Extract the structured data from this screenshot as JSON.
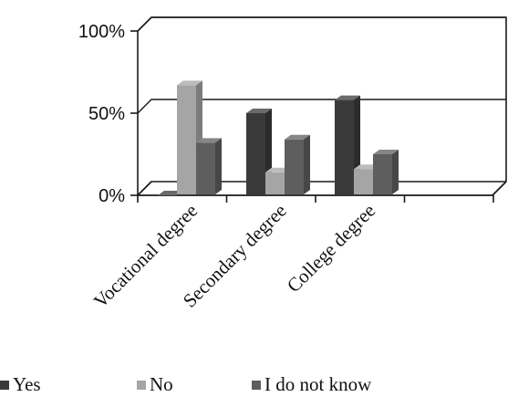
{
  "chart_data": {
    "type": "bar",
    "style": "3d-clustered-column",
    "categories": [
      "Vocational degree",
      "Secondary degree",
      "College degree"
    ],
    "y_ticks": [
      "0%",
      "50%",
      "100%"
    ],
    "ylim": [
      0,
      100
    ],
    "grid": true,
    "legend_position": "bottom-left",
    "series": [
      {
        "name": "Yes",
        "color": "#3a3a3a",
        "values": [
          0,
          50,
          58
        ]
      },
      {
        "name": "No",
        "color": "#a5a5a5",
        "values": [
          67,
          14,
          16
        ]
      },
      {
        "name": "I do not know",
        "color": "#5e5e5e",
        "values": [
          32,
          34,
          25
        ]
      }
    ]
  }
}
